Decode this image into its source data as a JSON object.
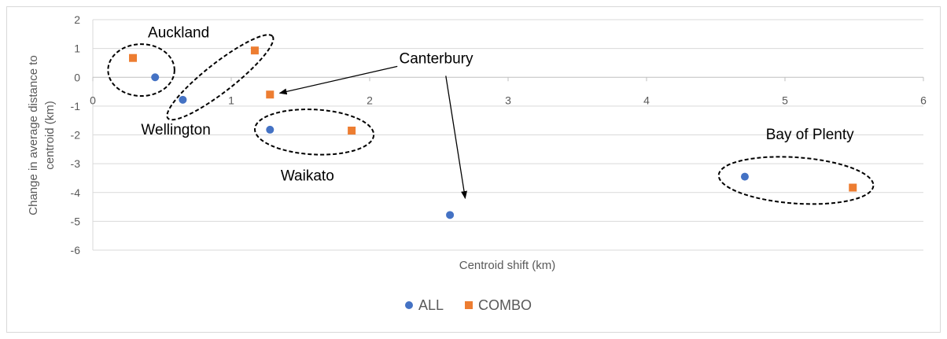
{
  "chart_data": {
    "type": "scatter",
    "title": "",
    "xlabel": "Centroid shift (km)",
    "ylabel": "Change in average distance to centroid (km)",
    "xlim": [
      0,
      6
    ],
    "ylim": [
      -6,
      2
    ],
    "xticks": [
      0,
      1,
      2,
      3,
      4,
      5,
      6
    ],
    "yticks": [
      2,
      1,
      0,
      -1,
      -2,
      -3,
      -4,
      -5,
      -6
    ],
    "grid": "horizontal",
    "legend_position": "bottom",
    "series": [
      {
        "name": "ALL",
        "color": "#4472C4",
        "marker": "circle",
        "points": [
          {
            "x": 0.45,
            "y": 0.0
          },
          {
            "x": 0.65,
            "y": -0.78
          },
          {
            "x": 1.28,
            "y": -1.82
          },
          {
            "x": 2.58,
            "y": -4.78
          },
          {
            "x": 4.71,
            "y": -3.45
          }
        ]
      },
      {
        "name": "COMBO",
        "color": "#ED7D31",
        "marker": "square",
        "points": [
          {
            "x": 0.29,
            "y": 0.67
          },
          {
            "x": 1.17,
            "y": 0.93
          },
          {
            "x": 1.28,
            "y": -0.6
          },
          {
            "x": 1.87,
            "y": -1.85
          },
          {
            "x": 5.49,
            "y": -3.83
          }
        ]
      }
    ],
    "annotations": [
      {
        "text": "Auckland",
        "x": 0.62,
        "y": 1.38
      },
      {
        "text": "Wellington",
        "x": 0.6,
        "y": -1.98
      },
      {
        "text": "Waikato",
        "x": 1.55,
        "y": -3.58
      },
      {
        "text": "Canterbury",
        "x": 2.48,
        "y": 0.48
      },
      {
        "text": "Bay of Plenty",
        "x": 5.18,
        "y": -2.15
      }
    ],
    "groupings": [
      {
        "label": "Auckland",
        "cx": 0.35,
        "cy": 0.25,
        "rx": 0.24,
        "ry": 0.9,
        "rotate": 0
      },
      {
        "label": "Wellington",
        "cx": 0.92,
        "cy": 0.0,
        "rx": 0.48,
        "ry": 0.5,
        "rotate": -38
      },
      {
        "label": "Waikato",
        "cx": 1.6,
        "cy": -1.9,
        "rx": 0.43,
        "ry": 0.78,
        "rotate": 3
      },
      {
        "label": "Bay of Plenty",
        "cx": 5.08,
        "cy": -3.58,
        "rx": 0.56,
        "ry": 0.8,
        "rotate": 4
      }
    ],
    "arrows": [
      {
        "from_x": 2.2,
        "from_y": 0.38,
        "to_x": 1.35,
        "to_y": -0.55
      },
      {
        "from_x": 2.55,
        "from_y": 0.05,
        "to_x": 2.69,
        "to_y": -4.2
      }
    ]
  }
}
